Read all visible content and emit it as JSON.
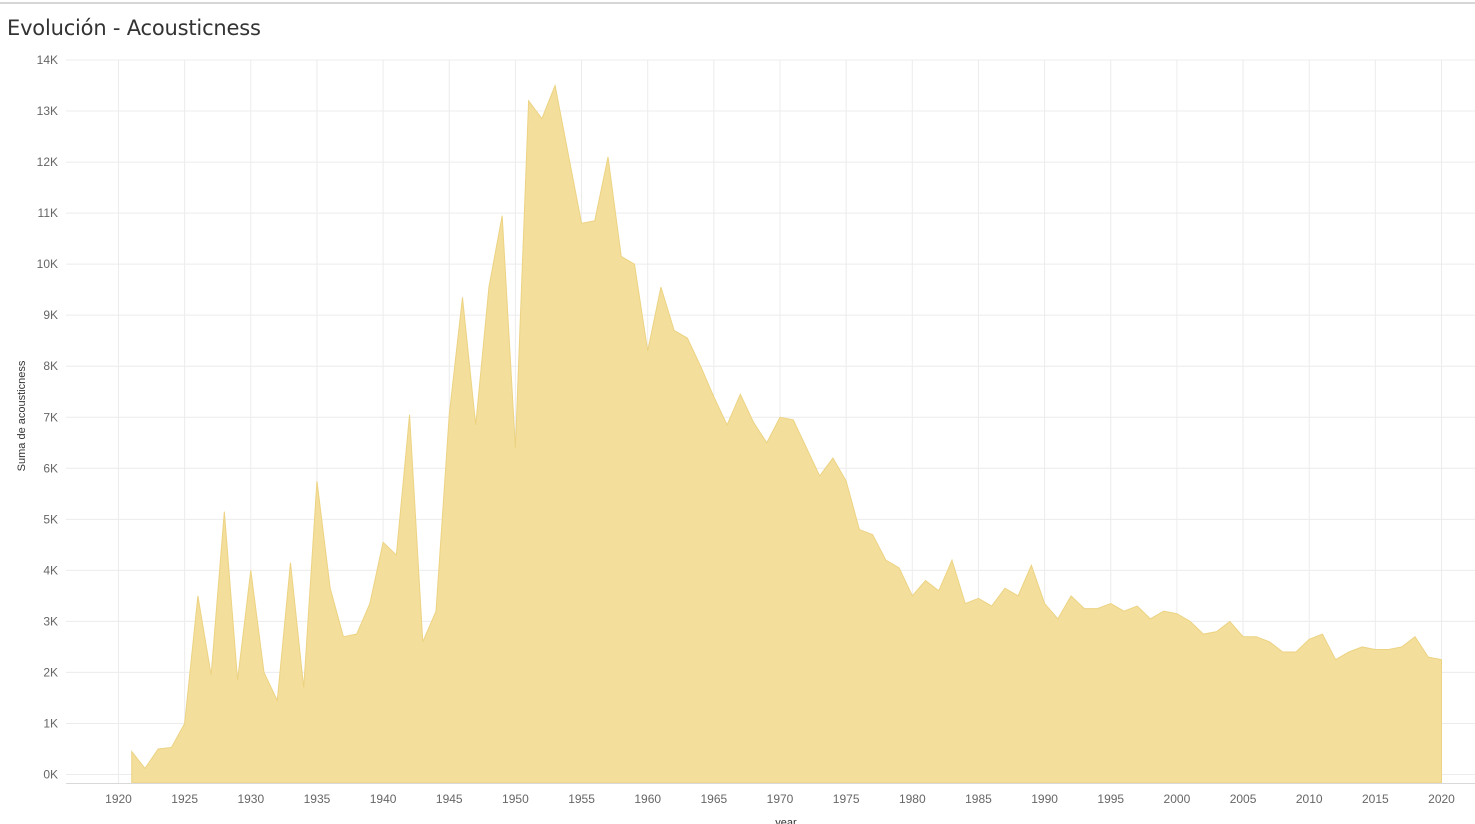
{
  "page": {
    "title": "Evolución - Acousticness"
  },
  "colors": {
    "area_fill": "#f3de9b",
    "area_stroke": "#ecd383",
    "grid": "#ececec",
    "axis_text": "#666666"
  },
  "chart_data": {
    "type": "area",
    "title": "Evolución - Acousticness",
    "xlabel": "year",
    "ylabel": "Suma de acousticness",
    "xlim": [
      1915,
      2023
    ],
    "ylim": [
      0,
      14000
    ],
    "x_ticks": [
      1920,
      1925,
      1930,
      1935,
      1940,
      1945,
      1950,
      1955,
      1960,
      1965,
      1970,
      1975,
      1980,
      1985,
      1990,
      1995,
      2000,
      2005,
      2010,
      2015,
      2020
    ],
    "y_ticks": [
      0,
      1000,
      2000,
      3000,
      4000,
      5000,
      6000,
      7000,
      8000,
      9000,
      10000,
      11000,
      12000,
      13000,
      14000
    ],
    "y_tick_labels": [
      "0K",
      "1K",
      "2K",
      "3K",
      "4K",
      "5K",
      "6K",
      "7K",
      "8K",
      "9K",
      "10K",
      "11K",
      "12K",
      "13K",
      "14K"
    ],
    "grid": true,
    "series": [
      {
        "x": [
          1921,
          1922,
          1923,
          1924,
          1925,
          1926,
          1927,
          1928,
          1929,
          1930,
          1931,
          1932,
          1933,
          1934,
          1935,
          1936,
          1937,
          1938,
          1939,
          1940,
          1941,
          1942,
          1943,
          1944,
          1945,
          1946,
          1947,
          1948,
          1949,
          1950,
          1951,
          1952,
          1953,
          1954,
          1955,
          1956,
          1957,
          1958,
          1959,
          1960,
          1961,
          1962,
          1963,
          1964,
          1965,
          1966,
          1967,
          1968,
          1969,
          1970,
          1971,
          1972,
          1973,
          1974,
          1975,
          1976,
          1977,
          1978,
          1979,
          1980,
          1981,
          1982,
          1983,
          1984,
          1985,
          1986,
          1987,
          1988,
          1989,
          1990,
          1991,
          1992,
          1993,
          1994,
          1995,
          1996,
          1997,
          1998,
          1999,
          2000,
          2001,
          2002,
          2003,
          2004,
          2005,
          2006,
          2007,
          2008,
          2009,
          2010,
          2011,
          2012,
          2013,
          2014,
          2015,
          2016,
          2017,
          2018,
          2019,
          2020
        ],
        "values": [
          450,
          120,
          500,
          530,
          1000,
          3500,
          1950,
          5150,
          1850,
          4000,
          2000,
          1450,
          4150,
          1700,
          5750,
          3650,
          2700,
          2750,
          3350,
          4550,
          4300,
          7050,
          2600,
          3200,
          7050,
          9350,
          6850,
          9550,
          10950,
          6400,
          13200,
          12850,
          13500,
          12150,
          10800,
          10850,
          12100,
          10150,
          10000,
          8300,
          9550,
          8700,
          8550,
          8000,
          7400,
          6850,
          7450,
          6900,
          6500,
          7000,
          6950,
          6400,
          5850,
          6200,
          5750,
          4800,
          4700,
          4200,
          4050,
          3500,
          3800,
          3600,
          4200,
          3350,
          3450,
          3300,
          3650,
          3500,
          4100,
          3350,
          3050,
          3500,
          3250,
          3250,
          3350,
          3200,
          3300,
          3050,
          3200,
          3150,
          3000,
          2750,
          2800,
          3000,
          2700,
          2700,
          2600,
          2400,
          2400,
          2650,
          2750,
          2250,
          2400,
          2500,
          2450,
          2450,
          2500,
          2700,
          2300,
          2250
        ]
      }
    ]
  }
}
